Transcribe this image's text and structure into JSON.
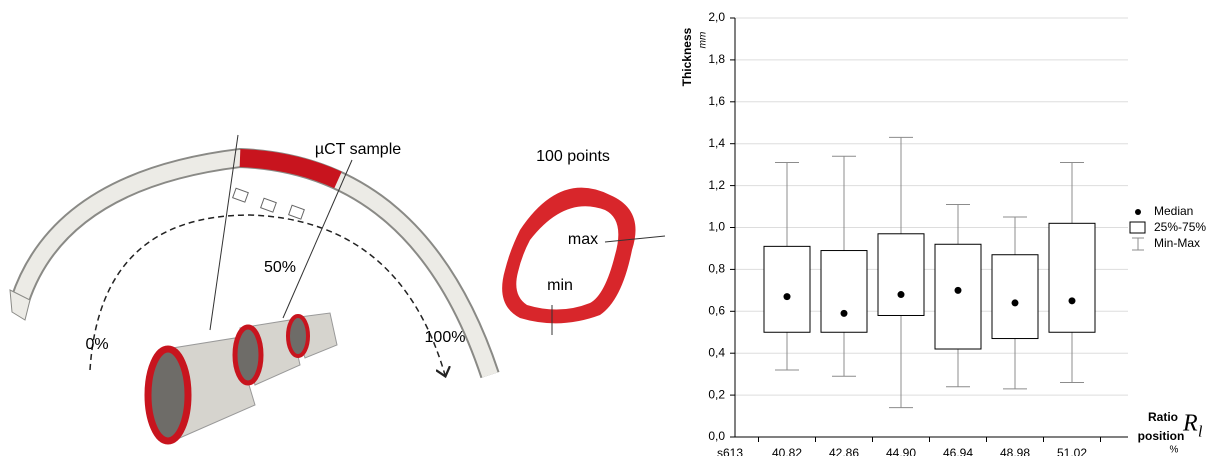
{
  "diagram": {
    "sample_label": "µCT sample",
    "mid_label": "50%",
    "start_label": "0%",
    "end_label": "100%",
    "points_label": "100 points",
    "max_label": "max",
    "min_label": "min"
  },
  "chart_data": {
    "type": "box",
    "y_label": "Thickness",
    "y_unit": "mm",
    "x_label_1": "Ratio",
    "x_label_2": "position",
    "x_unit": "%",
    "x_symbol": "R",
    "x_symbol_sub": "l",
    "categories": [
      "s613",
      "40,82",
      "42,86",
      "44,90",
      "46,94",
      "48,98",
      "51,02"
    ],
    "min": [
      null,
      0.32,
      0.29,
      0.14,
      0.24,
      0.23,
      0.26
    ],
    "q1": [
      null,
      0.5,
      0.5,
      0.58,
      0.42,
      0.47,
      0.5
    ],
    "median": [
      null,
      0.67,
      0.59,
      0.68,
      0.7,
      0.64,
      0.65
    ],
    "q3": [
      null,
      0.91,
      0.89,
      0.97,
      0.92,
      0.87,
      1.02
    ],
    "max": [
      null,
      1.31,
      1.34,
      1.43,
      1.11,
      1.05,
      1.31
    ],
    "legend": [
      "Median",
      "25%-75%",
      "Min-Max"
    ],
    "box_color": "#000000",
    "whisker_color": "#8c8c8c",
    "ylim": [
      0,
      2
    ],
    "yticks": [
      {
        "value": 0,
        "label": "0,0"
      },
      {
        "value": 0.2,
        "label": "0,2"
      },
      {
        "value": 0.4,
        "label": "0,4"
      },
      {
        "value": 0.6,
        "label": "0,6"
      },
      {
        "value": 0.8,
        "label": "0,8"
      },
      {
        "value": 1,
        "label": "1,0"
      },
      {
        "value": 1.2,
        "label": "1,2"
      },
      {
        "value": 1.4,
        "label": "1,4"
      },
      {
        "value": 1.6,
        "label": "1,6"
      },
      {
        "value": 1.8,
        "label": "1,8"
      },
      {
        "value": 2,
        "label": "2,0"
      }
    ],
    "grid": true
  }
}
